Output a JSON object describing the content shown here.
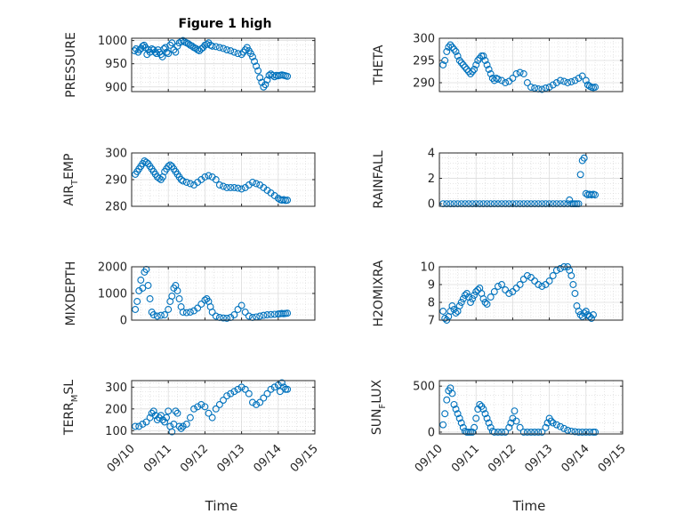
{
  "chart_data": [
    {
      "id": "pressure",
      "type": "scatter",
      "title": "Figure 1 high",
      "ylabel": "PRESSURE",
      "ylabel_sub": "",
      "ylabel_tail": "",
      "xlabel": "",
      "ylim": [
        890,
        1005
      ],
      "yticks": [
        900,
        950,
        1000
      ],
      "xlim": [
        0,
        5
      ],
      "xticks": [
        0,
        1,
        2,
        3,
        4,
        5
      ],
      "xtick_labels": [],
      "marker_color": "#0072bd",
      "grid": true,
      "minor_grid": true,
      "x": [
        0.08,
        0.12,
        0.18,
        0.22,
        0.26,
        0.3,
        0.34,
        0.38,
        0.42,
        0.46,
        0.5,
        0.55,
        0.6,
        0.64,
        0.68,
        0.72,
        0.76,
        0.8,
        0.84,
        0.88,
        0.92,
        0.96,
        1.0,
        1.05,
        1.1,
        1.15,
        1.2,
        1.25,
        1.3,
        1.35,
        1.4,
        1.45,
        1.5,
        1.55,
        1.6,
        1.65,
        1.7,
        1.75,
        1.8,
        1.85,
        1.9,
        1.95,
        2.0,
        2.05,
        2.1,
        2.15,
        2.2,
        2.3,
        2.4,
        2.5,
        2.6,
        2.7,
        2.8,
        2.9,
        3.0,
        3.05,
        3.1,
        3.15,
        3.2,
        3.25,
        3.3,
        3.35,
        3.4,
        3.45,
        3.5,
        3.55,
        3.6,
        3.65,
        3.7,
        3.75,
        3.8,
        3.85,
        3.9,
        3.95,
        4.0,
        4.05,
        4.1,
        4.15,
        4.2,
        4.25
      ],
      "y": [
        978,
        982,
        975,
        980,
        983,
        988,
        990,
        985,
        970,
        980,
        975,
        982,
        980,
        975,
        972,
        980,
        975,
        970,
        965,
        982,
        985,
        975,
        972,
        990,
        995,
        980,
        975,
        988,
        995,
        998,
        1000,
        997,
        995,
        993,
        990,
        988,
        985,
        983,
        980,
        978,
        982,
        985,
        990,
        992,
        995,
        990,
        988,
        987,
        985,
        983,
        980,
        978,
        975,
        972,
        970,
        975,
        980,
        985,
        978,
        972,
        965,
        955,
        945,
        935,
        920,
        910,
        900,
        905,
        915,
        925,
        928,
        925,
        922,
        925,
        924,
        925,
        926,
        925,
        924,
        923
      ],
      "hint": "all values estimated from plot"
    },
    {
      "id": "theta",
      "type": "scatter",
      "title": "",
      "ylabel": "THETA",
      "ylabel_sub": "",
      "ylabel_tail": "",
      "xlabel": "",
      "ylim": [
        288,
        300
      ],
      "yticks": [
        290,
        295,
        300
      ],
      "xlim": [
        0,
        5
      ],
      "xticks": [
        0,
        1,
        2,
        3,
        4,
        5
      ],
      "xtick_labels": [],
      "marker_color": "#0072bd",
      "grid": true,
      "minor_grid": true,
      "x": [
        0.1,
        0.15,
        0.2,
        0.25,
        0.3,
        0.35,
        0.4,
        0.45,
        0.5,
        0.55,
        0.6,
        0.65,
        0.7,
        0.75,
        0.8,
        0.85,
        0.9,
        0.95,
        1.0,
        1.05,
        1.1,
        1.15,
        1.2,
        1.25,
        1.3,
        1.35,
        1.4,
        1.45,
        1.5,
        1.55,
        1.6,
        1.7,
        1.8,
        1.9,
        2.0,
        2.1,
        2.2,
        2.3,
        2.4,
        2.5,
        2.6,
        2.7,
        2.8,
        2.9,
        3.0,
        3.1,
        3.2,
        3.3,
        3.4,
        3.5,
        3.6,
        3.7,
        3.8,
        3.9,
        4.0,
        4.05,
        4.1,
        4.15,
        4.2,
        4.25
      ],
      "y": [
        294,
        295,
        297,
        298,
        298.5,
        298,
        297.5,
        297,
        296,
        295,
        294.5,
        294,
        293.5,
        293,
        292.5,
        292,
        292.5,
        293,
        294,
        295,
        295.5,
        296,
        296,
        295,
        294,
        293,
        292,
        291,
        290.5,
        291,
        290.8,
        290.5,
        290,
        290.3,
        291,
        292,
        292.3,
        292,
        290,
        289,
        288.8,
        288.6,
        288.5,
        288.8,
        289,
        289.5,
        290,
        290.5,
        290.3,
        290,
        290.2,
        290.5,
        291,
        291.5,
        290.5,
        289.5,
        289.2,
        289,
        288.9,
        289
      ],
      "hint": "all values estimated from plot"
    },
    {
      "id": "air-temp",
      "type": "scatter",
      "title": "",
      "ylabel": "AIR",
      "ylabel_sub": "T",
      "ylabel_tail": "EMP",
      "xlabel": "",
      "ylim": [
        280,
        300
      ],
      "yticks": [
        280,
        290,
        300
      ],
      "xlim": [
        0,
        5
      ],
      "xticks": [
        0,
        1,
        2,
        3,
        4,
        5
      ],
      "xtick_labels": [],
      "marker_color": "#0072bd",
      "grid": true,
      "minor_grid": true,
      "x": [
        0.1,
        0.15,
        0.2,
        0.25,
        0.3,
        0.35,
        0.4,
        0.45,
        0.5,
        0.55,
        0.6,
        0.65,
        0.7,
        0.75,
        0.8,
        0.85,
        0.9,
        0.95,
        1.0,
        1.05,
        1.1,
        1.15,
        1.2,
        1.25,
        1.3,
        1.35,
        1.4,
        1.5,
        1.6,
        1.7,
        1.8,
        1.9,
        2.0,
        2.1,
        2.2,
        2.3,
        2.4,
        2.5,
        2.6,
        2.7,
        2.8,
        2.9,
        3.0,
        3.1,
        3.2,
        3.3,
        3.4,
        3.5,
        3.6,
        3.7,
        3.8,
        3.9,
        4.0,
        4.05,
        4.1,
        4.15,
        4.2,
        4.25
      ],
      "y": [
        292,
        293,
        294,
        295,
        296,
        297,
        296.5,
        296,
        295,
        294,
        293,
        292,
        291,
        290.5,
        290,
        291,
        293,
        294,
        295,
        295.5,
        295,
        294,
        293,
        292,
        291,
        290,
        289.5,
        289,
        288.5,
        288,
        289,
        290,
        291,
        291.5,
        291,
        290,
        288,
        287.5,
        287,
        287,
        287,
        286.8,
        286.5,
        287,
        288,
        289,
        288.5,
        288,
        287,
        286,
        285,
        284,
        283,
        282.5,
        282.3,
        282.5,
        282.2,
        282.3
      ],
      "hint": "all values estimated from plot"
    },
    {
      "id": "rainfall",
      "type": "scatter",
      "title": "",
      "ylabel": "RAINFALL",
      "ylabel_sub": "",
      "ylabel_tail": "",
      "xlabel": "",
      "ylim": [
        -0.2,
        4
      ],
      "yticks": [
        0,
        2,
        4
      ],
      "xlim": [
        0,
        5
      ],
      "xticks": [
        0,
        1,
        2,
        3,
        4,
        5
      ],
      "xtick_labels": [],
      "marker_color": "#0072bd",
      "grid": true,
      "minor_grid": true,
      "x": [
        0.1,
        0.2,
        0.3,
        0.4,
        0.5,
        0.6,
        0.7,
        0.8,
        0.9,
        1.0,
        1.1,
        1.2,
        1.3,
        1.4,
        1.5,
        1.6,
        1.7,
        1.8,
        1.9,
        2.0,
        2.1,
        2.2,
        2.3,
        2.4,
        2.5,
        2.6,
        2.7,
        2.8,
        2.9,
        3.0,
        3.1,
        3.2,
        3.3,
        3.4,
        3.5,
        3.55,
        3.6,
        3.65,
        3.7,
        3.75,
        3.8,
        3.85,
        3.9,
        3.95,
        4.0,
        4.05,
        4.1,
        4.15,
        4.2,
        4.25
      ],
      "y": [
        0,
        0,
        0,
        0,
        0,
        0,
        0,
        0,
        0,
        0,
        0,
        0,
        0,
        0,
        0,
        0,
        0,
        0,
        0,
        0,
        0,
        0,
        0,
        0,
        0,
        0,
        0,
        0,
        0,
        0,
        0,
        0,
        0,
        0,
        0,
        0.3,
        0,
        0,
        0,
        0,
        0,
        2.3,
        3.4,
        3.6,
        0.8,
        0.7,
        0.75,
        0.7,
        0.75,
        0.7
      ],
      "hint": "all values estimated from plot"
    },
    {
      "id": "mixdepth",
      "type": "scatter",
      "title": "",
      "ylabel": "MIXDEPTH",
      "ylabel_sub": "",
      "ylabel_tail": "",
      "xlabel": "",
      "ylim": [
        0,
        2000
      ],
      "yticks": [
        0,
        1000,
        2000
      ],
      "xlim": [
        0,
        5
      ],
      "xticks": [
        0,
        1,
        2,
        3,
        4,
        5
      ],
      "xtick_labels": [],
      "marker_color": "#0072bd",
      "grid": true,
      "minor_grid": true,
      "x": [
        0.1,
        0.15,
        0.2,
        0.25,
        0.3,
        0.35,
        0.4,
        0.45,
        0.5,
        0.55,
        0.6,
        0.7,
        0.8,
        0.9,
        1.0,
        1.05,
        1.1,
        1.15,
        1.2,
        1.25,
        1.3,
        1.35,
        1.4,
        1.5,
        1.6,
        1.7,
        1.8,
        1.9,
        2.0,
        2.05,
        2.1,
        2.15,
        2.2,
        2.3,
        2.4,
        2.5,
        2.6,
        2.7,
        2.8,
        2.9,
        3.0,
        3.1,
        3.2,
        3.3,
        3.4,
        3.5,
        3.6,
        3.7,
        3.8,
        3.9,
        4.0,
        4.05,
        4.1,
        4.15,
        4.2,
        4.25
      ],
      "y": [
        400,
        700,
        1100,
        1500,
        1200,
        1800,
        1900,
        1300,
        800,
        300,
        200,
        150,
        180,
        200,
        400,
        700,
        900,
        1200,
        1300,
        1100,
        800,
        500,
        300,
        280,
        300,
        350,
        450,
        600,
        750,
        800,
        700,
        500,
        300,
        150,
        100,
        80,
        70,
        100,
        200,
        400,
        550,
        300,
        150,
        100,
        120,
        150,
        180,
        200,
        210,
        220,
        230,
        240,
        250,
        240,
        250,
        260
      ],
      "hint": "all values estimated from plot"
    },
    {
      "id": "h2omixra",
      "type": "scatter",
      "title": "",
      "ylabel": "H2OMIXRA",
      "ylabel_sub": "",
      "ylabel_tail": "",
      "xlabel": "",
      "ylim": [
        7,
        10
      ],
      "yticks": [
        7,
        8,
        9,
        10
      ],
      "xlim": [
        0,
        5
      ],
      "xticks": [
        0,
        1,
        2,
        3,
        4,
        5
      ],
      "xtick_labels": [],
      "marker_color": "#0072bd",
      "grid": true,
      "minor_grid": true,
      "x": [
        0.1,
        0.15,
        0.2,
        0.25,
        0.3,
        0.35,
        0.4,
        0.45,
        0.5,
        0.55,
        0.6,
        0.65,
        0.7,
        0.75,
        0.8,
        0.85,
        0.9,
        0.95,
        1.0,
        1.05,
        1.1,
        1.15,
        1.2,
        1.25,
        1.3,
        1.4,
        1.5,
        1.6,
        1.7,
        1.8,
        1.9,
        2.0,
        2.1,
        2.2,
        2.3,
        2.4,
        2.5,
        2.6,
        2.7,
        2.8,
        2.9,
        3.0,
        3.1,
        3.2,
        3.3,
        3.4,
        3.5,
        3.55,
        3.6,
        3.65,
        3.7,
        3.75,
        3.8,
        3.85,
        3.9,
        3.95,
        4.0,
        4.05,
        4.1,
        4.15,
        4.2
      ],
      "y": [
        7.5,
        7.1,
        7.0,
        7.2,
        7.5,
        7.8,
        7.6,
        7.4,
        7.5,
        7.8,
        8.0,
        8.2,
        8.4,
        8.5,
        8.3,
        8.0,
        8.2,
        8.4,
        8.6,
        8.7,
        8.8,
        8.5,
        8.2,
        8.0,
        7.9,
        8.3,
        8.6,
        8.9,
        9.0,
        8.7,
        8.5,
        8.6,
        8.8,
        9.0,
        9.3,
        9.5,
        9.4,
        9.2,
        9.0,
        8.9,
        9.0,
        9.2,
        9.5,
        9.8,
        9.9,
        10.0,
        10.0,
        9.8,
        9.5,
        9.0,
        8.5,
        7.8,
        7.5,
        7.3,
        7.2,
        7.4,
        7.5,
        7.3,
        7.2,
        7.1,
        7.3
      ],
      "hint": "all values estimated from plot"
    },
    {
      "id": "terr-msl",
      "type": "scatter",
      "title": "",
      "ylabel": "TERR",
      "ylabel_sub": "M",
      "ylabel_tail": "SL",
      "xlabel": "Time",
      "ylim": [
        85,
        330
      ],
      "yticks": [
        100,
        200,
        300
      ],
      "xlim": [
        0,
        5
      ],
      "xticks": [
        0,
        1,
        2,
        3,
        4,
        5
      ],
      "xtick_labels": [
        "09/10",
        "09/11",
        "09/12",
        "09/13",
        "09/14",
        "09/15"
      ],
      "marker_color": "#0072bd",
      "grid": true,
      "minor_grid": true,
      "x": [
        0.1,
        0.2,
        0.3,
        0.4,
        0.5,
        0.55,
        0.6,
        0.65,
        0.7,
        0.75,
        0.8,
        0.85,
        0.9,
        0.95,
        1.0,
        1.05,
        1.1,
        1.15,
        1.2,
        1.25,
        1.3,
        1.35,
        1.4,
        1.5,
        1.6,
        1.7,
        1.8,
        1.9,
        2.0,
        2.1,
        2.2,
        2.3,
        2.4,
        2.5,
        2.6,
        2.7,
        2.8,
        2.9,
        3.0,
        3.1,
        3.2,
        3.3,
        3.4,
        3.5,
        3.6,
        3.7,
        3.8,
        3.9,
        4.0,
        4.05,
        4.1,
        4.15,
        4.2,
        4.25
      ],
      "y": [
        120,
        120,
        130,
        140,
        160,
        180,
        190,
        170,
        150,
        160,
        170,
        150,
        140,
        160,
        190,
        120,
        95,
        130,
        190,
        180,
        120,
        110,
        120,
        130,
        160,
        200,
        210,
        220,
        210,
        180,
        160,
        200,
        220,
        240,
        260,
        270,
        280,
        290,
        300,
        290,
        270,
        230,
        220,
        230,
        250,
        270,
        290,
        300,
        310,
        280,
        320,
        300,
        290,
        290
      ],
      "hint": "all values estimated from plot"
    },
    {
      "id": "sun-flux",
      "type": "scatter",
      "title": "",
      "ylabel": "SUN",
      "ylabel_sub": "F",
      "ylabel_tail": "LUX",
      "xlabel": "Time",
      "ylim": [
        -20,
        560
      ],
      "yticks": [
        0,
        500
      ],
      "xlim": [
        0,
        5
      ],
      "xticks": [
        0,
        1,
        2,
        3,
        4,
        5
      ],
      "xtick_labels": [
        "09/10",
        "09/11",
        "09/12",
        "09/13",
        "09/14",
        "09/15"
      ],
      "marker_color": "#0072bd",
      "grid": true,
      "minor_grid": true,
      "x": [
        0.1,
        0.15,
        0.2,
        0.25,
        0.3,
        0.35,
        0.4,
        0.45,
        0.5,
        0.55,
        0.6,
        0.65,
        0.7,
        0.75,
        0.8,
        0.85,
        0.9,
        0.95,
        1.0,
        1.05,
        1.1,
        1.15,
        1.2,
        1.25,
        1.3,
        1.35,
        1.4,
        1.45,
        1.5,
        1.6,
        1.7,
        1.8,
        1.9,
        1.95,
        2.0,
        2.05,
        2.1,
        2.2,
        2.3,
        2.4,
        2.5,
        2.6,
        2.7,
        2.8,
        2.9,
        2.95,
        3.0,
        3.05,
        3.1,
        3.2,
        3.3,
        3.4,
        3.5,
        3.6,
        3.7,
        3.8,
        3.9,
        4.0,
        4.1,
        4.2,
        4.25
      ],
      "y": [
        80,
        200,
        350,
        450,
        480,
        420,
        300,
        250,
        200,
        150,
        100,
        50,
        10,
        0,
        0,
        0,
        0,
        50,
        150,
        250,
        300,
        280,
        250,
        200,
        150,
        100,
        50,
        10,
        0,
        0,
        0,
        0,
        50,
        100,
        150,
        230,
        120,
        50,
        0,
        0,
        0,
        0,
        0,
        0,
        50,
        100,
        150,
        120,
        100,
        80,
        60,
        40,
        20,
        10,
        5,
        0,
        0,
        0,
        0,
        0,
        0
      ],
      "hint": "all values estimated from plot"
    }
  ]
}
